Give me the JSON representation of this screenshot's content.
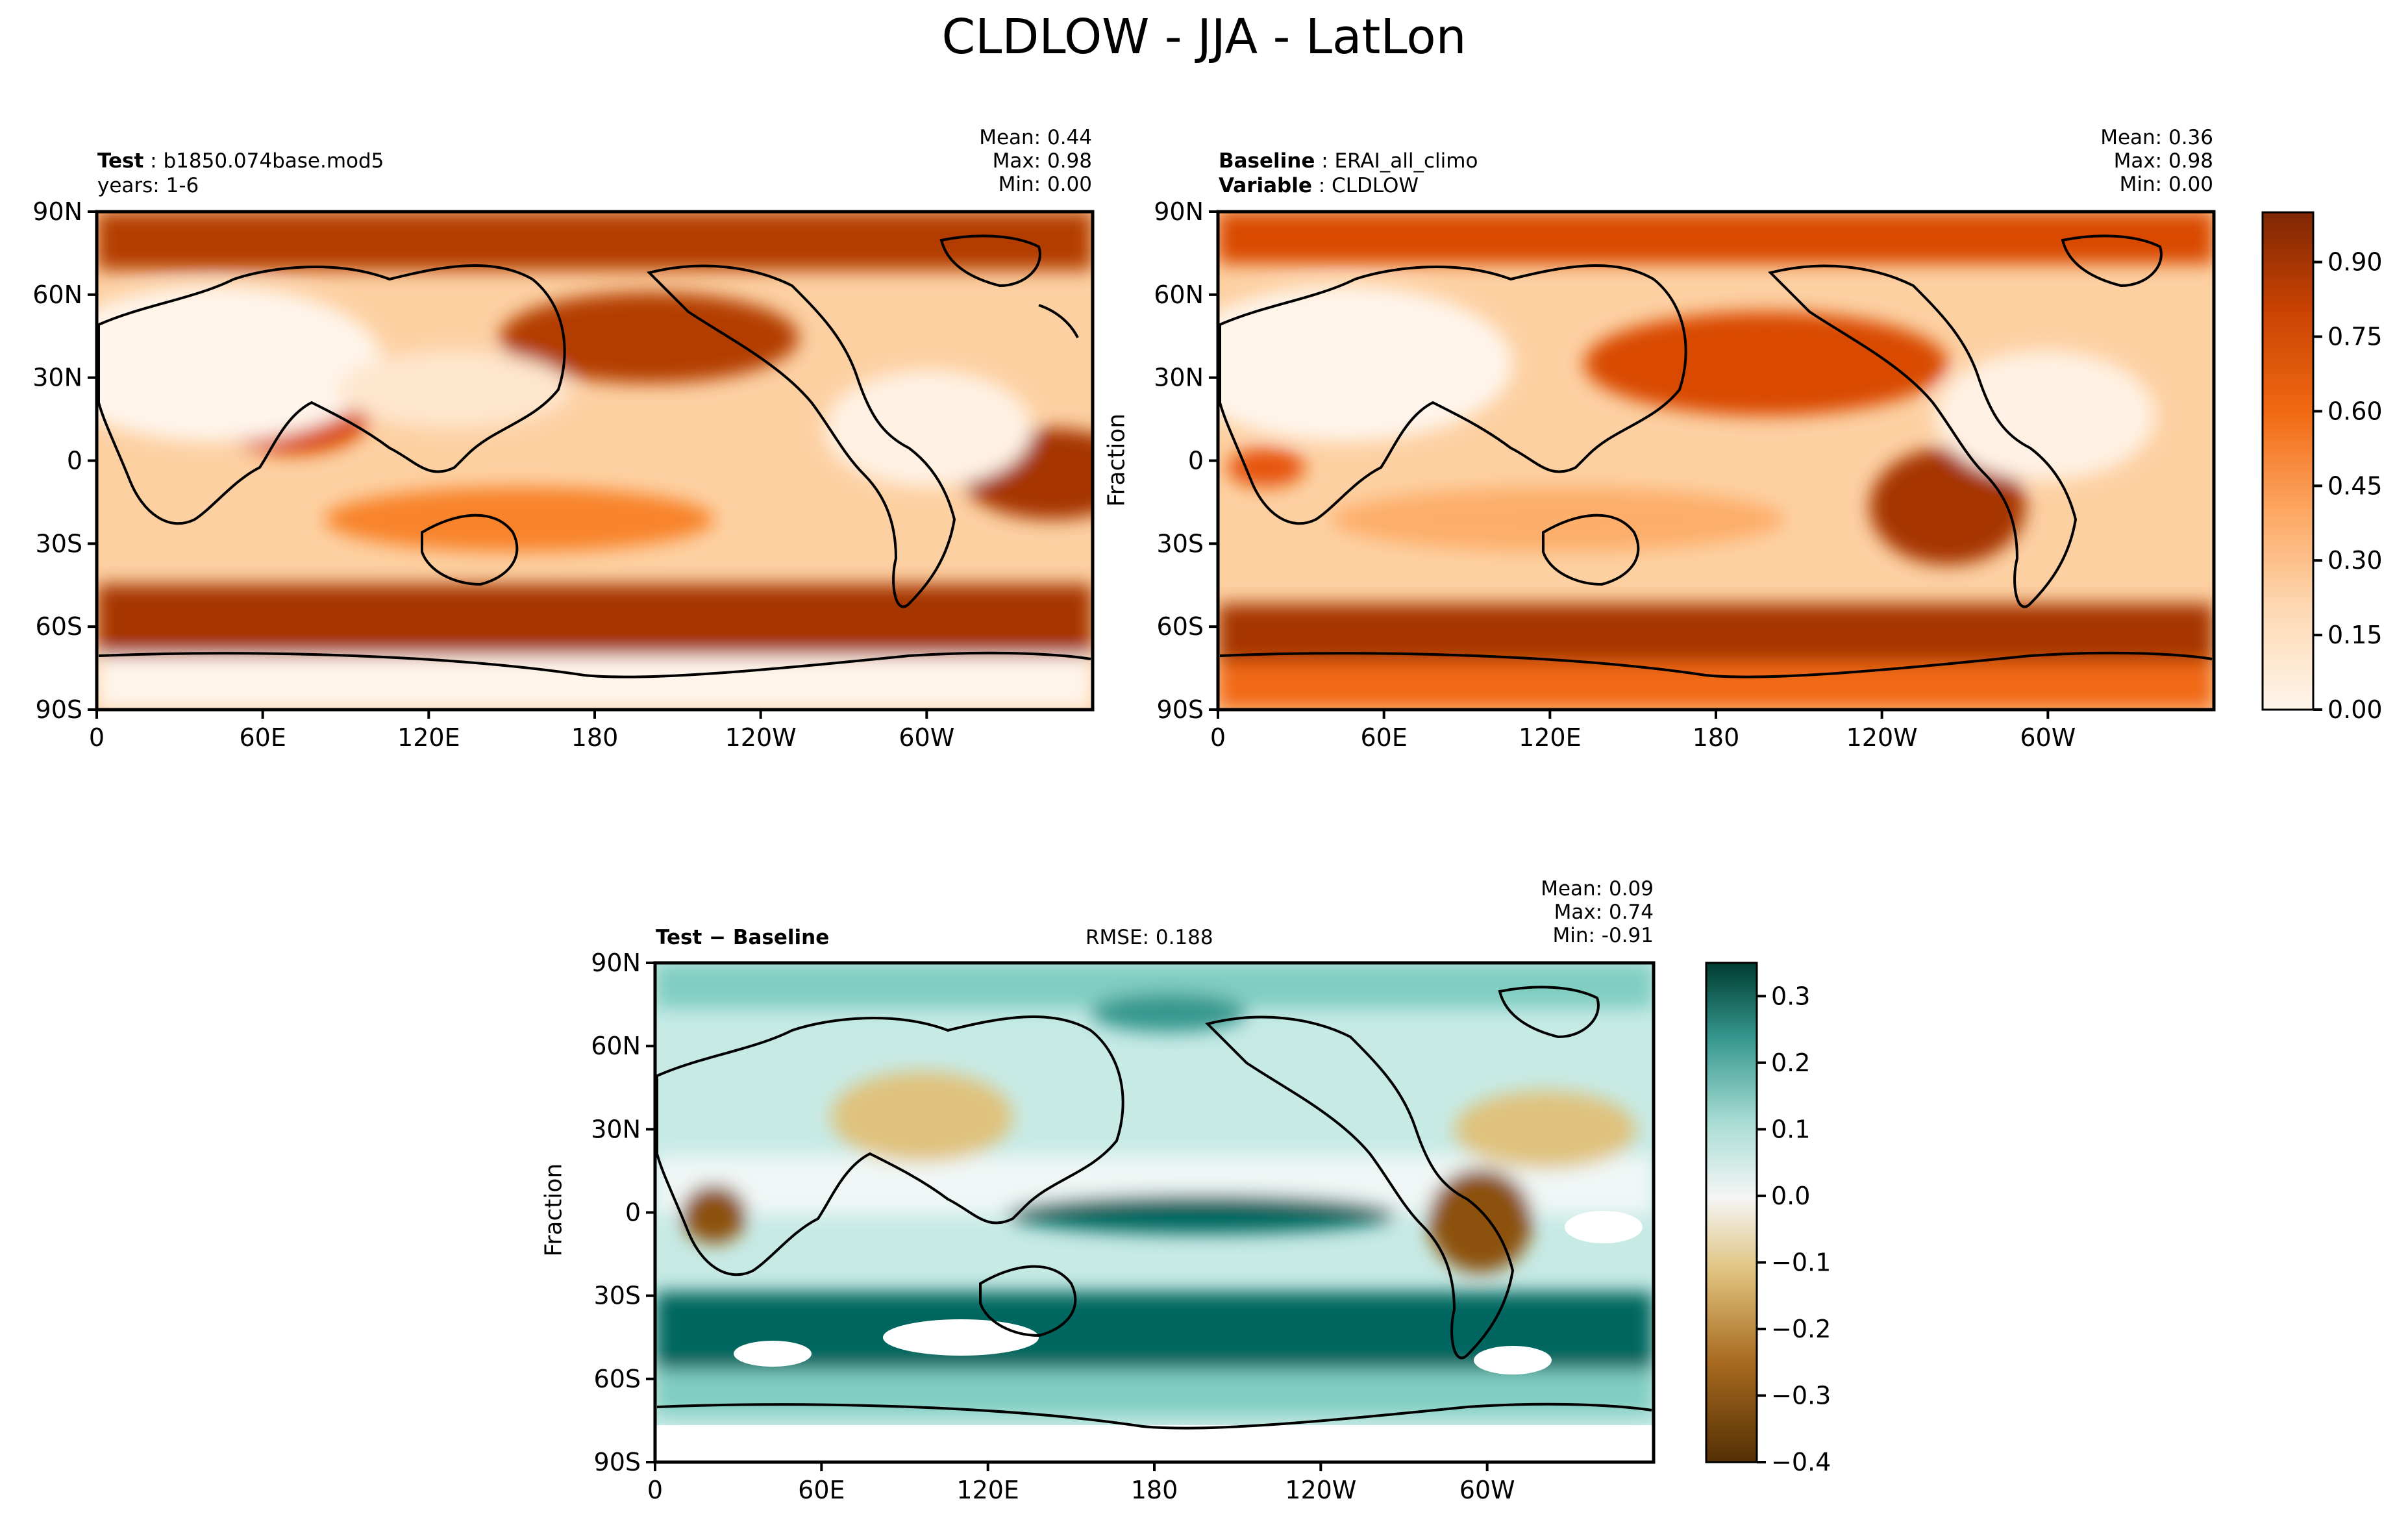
{
  "figure": {
    "title": "CLDLOW - JJA - LatLon"
  },
  "panels": {
    "test": {
      "label_bold": "Test",
      "label_value": "b1850.074base.mod5",
      "subline": "years: 1-6",
      "stats": [
        "Mean:  0.44",
        "Max:  0.98",
        "Min:  0.00"
      ]
    },
    "baseline": {
      "label_bold": "Baseline",
      "label_value": "ERAI_all_climo",
      "label2_bold": "Variable",
      "label2_value": "CLDLOW",
      "stats": [
        "Mean:  0.36",
        "Max:  0.98",
        "Min:  0.00"
      ],
      "ylabel": "Fraction"
    },
    "diff": {
      "label": "Test − Baseline",
      "rmse": "RMSE: 0.188",
      "stats": [
        "Mean:  0.09",
        "Max:  0.74",
        "Min: -0.91"
      ],
      "ylabel": "Fraction"
    }
  },
  "chart_data": [
    {
      "type": "heatmap",
      "name": "Test",
      "x_ticks": [
        "0",
        "60E",
        "120E",
        "180",
        "120W",
        "60W"
      ],
      "y_ticks": [
        "90N",
        "60N",
        "30N",
        "0",
        "30S",
        "60S",
        "90S"
      ],
      "stats": {
        "mean": 0.44,
        "max": 0.98,
        "min": 0.0
      },
      "colormap": "Oranges"
    },
    {
      "type": "heatmap",
      "name": "Baseline",
      "x_ticks": [
        "0",
        "60E",
        "120E",
        "180",
        "120W",
        "60W"
      ],
      "y_ticks": [
        "90N",
        "60N",
        "30N",
        "0",
        "30S",
        "60S",
        "90S"
      ],
      "stats": {
        "mean": 0.36,
        "max": 0.98,
        "min": 0.0
      },
      "colormap": "Oranges",
      "colorbar_ticks": [
        "0.00",
        "0.15",
        "0.30",
        "0.45",
        "0.60",
        "0.75",
        "0.90"
      ],
      "colorbar_range": [
        0.0,
        1.0
      ]
    },
    {
      "type": "heatmap",
      "name": "Test − Baseline",
      "x_ticks": [
        "0",
        "60E",
        "120E",
        "180",
        "120W",
        "60W"
      ],
      "y_ticks": [
        "90N",
        "60N",
        "30N",
        "0",
        "30S",
        "60S",
        "90S"
      ],
      "stats": {
        "mean": 0.09,
        "max": 0.74,
        "min": -0.91,
        "rmse": 0.188
      },
      "colormap": "BrBG",
      "colorbar_ticks": [
        "0.3",
        "0.2",
        "0.1",
        "0.0",
        "−0.1",
        "−0.2",
        "−0.3",
        "−0.4"
      ],
      "colorbar_range": [
        -0.4,
        0.35
      ]
    }
  ],
  "colors": {
    "orange_dark": "#7f2704",
    "orange_mid": "#f16913",
    "orange_light": "#fff5eb",
    "teal_dark": "#00463b",
    "teal_mid": "#35978f",
    "neutral": "#f5f5f5",
    "brown_mid": "#bf812d",
    "brown_dark": "#543005"
  }
}
